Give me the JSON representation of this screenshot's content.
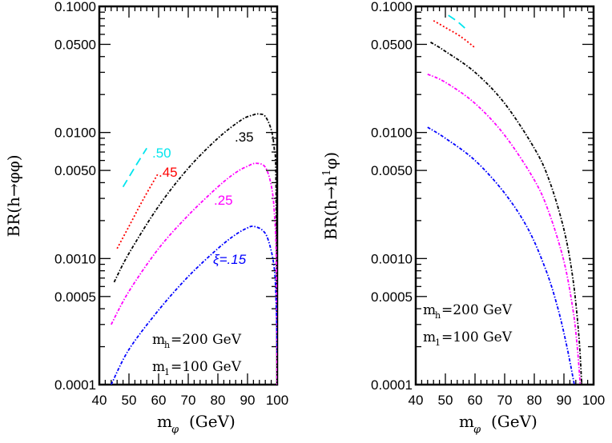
{
  "chart_data": [
    {
      "type": "line",
      "panel": "left",
      "title": "",
      "xlabel": "m_φ (GeV)",
      "ylabel": "BR(h→φφ)",
      "xlim": [
        40,
        100
      ],
      "ylim": [
        0.0001,
        0.1
      ],
      "yscale": "log",
      "x_ticks": [
        "40",
        "50",
        "60",
        "70",
        "80",
        "90",
        "100"
      ],
      "y_ticks": [
        "0.0001",
        "0.0005",
        "0.0010",
        "0.0050",
        "0.0100",
        "0.0500",
        "0.1000"
      ],
      "annotations": [
        "m_h=200 GeV",
        "m_1=100 GeV"
      ],
      "series": [
        {
          "name": ".50",
          "label": ".50",
          "color": "#00e5ee",
          "dash": "long-dash",
          "x": [
            48,
            52,
            56
          ],
          "values": [
            0.0037,
            0.0053,
            0.0075
          ]
        },
        {
          "name": ".45",
          "label": ".45",
          "color": "#ff0000",
          "dash": "dotted",
          "x": [
            46,
            50,
            55,
            60
          ],
          "values": [
            0.0012,
            0.0018,
            0.003,
            0.0048
          ]
        },
        {
          "name": ".35",
          "label": ".35",
          "color": "#000000",
          "dash": "dash-dot",
          "x": [
            45,
            50,
            60,
            70,
            80,
            88,
            92,
            94,
            96,
            98,
            99,
            99.6,
            100
          ],
          "values": [
            0.00065,
            0.0011,
            0.0026,
            0.0052,
            0.009,
            0.0126,
            0.0138,
            0.014,
            0.0134,
            0.0105,
            0.0075,
            0.004,
            0.0001
          ]
        },
        {
          "name": ".25",
          "label": ".25",
          "color": "#ff00ff",
          "dash": "dash-dot",
          "x": [
            44,
            50,
            60,
            70,
            80,
            86,
            90,
            93,
            96,
            98,
            99,
            99.7,
            100
          ],
          "values": [
            0.0003,
            0.00055,
            0.0012,
            0.0022,
            0.0037,
            0.0048,
            0.0054,
            0.0057,
            0.0053,
            0.0038,
            0.0024,
            0.001,
            0.0001
          ]
        },
        {
          "name": ".15",
          "label": "ξ=.15",
          "color": "#0000ff",
          "dash": "dash-dot",
          "x": [
            44,
            50,
            60,
            70,
            80,
            86,
            90,
            92,
            95,
            97,
            99,
            99.7,
            100
          ],
          "values": [
            0.0001,
            0.00019,
            0.00039,
            0.00072,
            0.0012,
            0.00155,
            0.00175,
            0.0018,
            0.00168,
            0.0014,
            0.00085,
            0.0004,
            0.00018
          ]
        }
      ]
    },
    {
      "type": "line",
      "panel": "right",
      "title": "",
      "xlabel": "m_φ (GeV)",
      "ylabel": "BR(h→h¹φ)",
      "xlim": [
        40,
        100
      ],
      "ylim": [
        0.0001,
        0.1
      ],
      "yscale": "log",
      "x_ticks": [
        "40",
        "50",
        "60",
        "70",
        "80",
        "90",
        "100"
      ],
      "y_ticks": [
        "0.0001",
        "0.0005",
        "0.0010",
        "0.0050",
        "0.0100",
        "0.0500",
        "0.1000"
      ],
      "annotations": [
        "m_h=200 GeV",
        "m_1=100 GeV"
      ],
      "series": [
        {
          "name": ".50",
          "color": "#00e5ee",
          "dash": "long-dash",
          "x": [
            51,
            54,
            57
          ],
          "values": [
            0.085,
            0.076,
            0.066
          ]
        },
        {
          "name": ".45",
          "color": "#ff0000",
          "dash": "dotted",
          "x": [
            46,
            50,
            55,
            60
          ],
          "values": [
            0.077,
            0.068,
            0.058,
            0.047
          ]
        },
        {
          "name": ".35",
          "color": "#000000",
          "dash": "dash-dot",
          "x": [
            45,
            50,
            60,
            70,
            80,
            85,
            90,
            93,
            95,
            96
          ],
          "values": [
            0.052,
            0.044,
            0.03,
            0.017,
            0.0075,
            0.0042,
            0.0017,
            0.0007,
            0.00025,
            0.0001
          ]
        },
        {
          "name": ".25",
          "color": "#ff00ff",
          "dash": "dash-dot",
          "x": [
            44,
            50,
            60,
            70,
            80,
            85,
            90,
            93,
            94.5,
            95.5
          ],
          "values": [
            0.029,
            0.025,
            0.017,
            0.0095,
            0.0042,
            0.0023,
            0.00095,
            0.0004,
            0.0002,
            0.0001
          ]
        },
        {
          "name": ".15",
          "color": "#0000ff",
          "dash": "dash-dot",
          "x": [
            44,
            50,
            60,
            70,
            78,
            84,
            88,
            91,
            93.5
          ],
          "values": [
            0.011,
            0.009,
            0.006,
            0.0033,
            0.0017,
            0.0008,
            0.0004,
            0.0002,
            0.0001
          ]
        }
      ]
    }
  ],
  "left": {
    "ylabel": "BR(h→φφ)",
    "xlabel_main": "m",
    "xlabel_sub": "φ",
    "xlabel_unit": "(GeV)",
    "annot1_main": "m",
    "annot1_sub": "h",
    "annot1_rest": "=200 GeV",
    "annot2_main": "m",
    "annot2_sub": "1",
    "annot2_rest": "=100 GeV",
    "labels": {
      "l50": ".50",
      "l45": ".45",
      "l35": ".35",
      "l25": ".25",
      "l15": "ξ=.15"
    }
  },
  "right": {
    "ylabel_pre": "BR(h→h",
    "ylabel_sup": "1",
    "ylabel_post": "φ)",
    "xlabel_main": "m",
    "xlabel_sub": "φ",
    "xlabel_unit": "(GeV)",
    "annot1_main": "m",
    "annot1_sub": "h",
    "annot1_rest": "=200 GeV",
    "annot2_main": "m",
    "annot2_sub": "1",
    "annot2_rest": "=100 GeV"
  },
  "ticks": {
    "y": [
      "0.1000",
      "0.0500",
      "0.0100",
      "0.0050",
      "0.0010",
      "0.0005",
      "0.0001"
    ],
    "x": [
      "40",
      "50",
      "60",
      "70",
      "80",
      "90",
      "100"
    ]
  }
}
